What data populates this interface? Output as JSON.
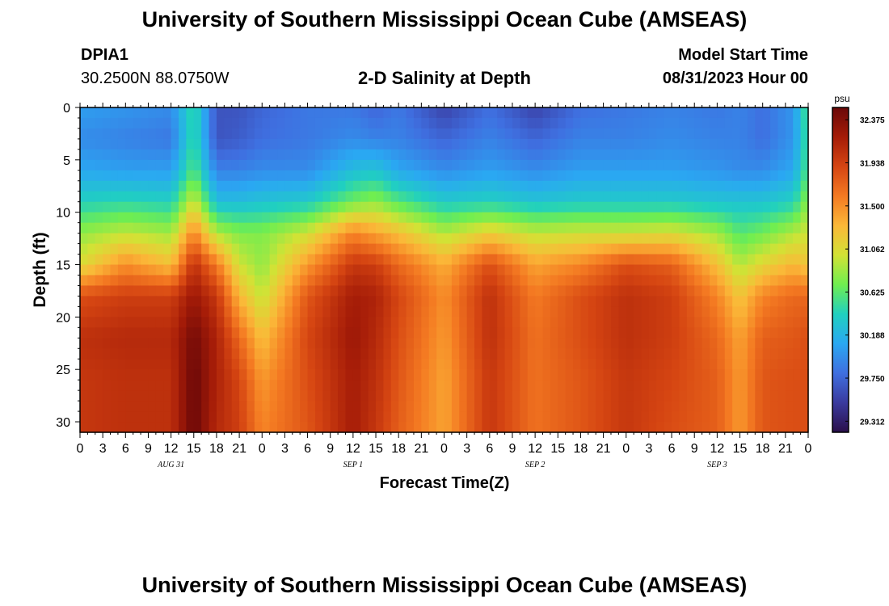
{
  "page": {
    "title": "University of Southern Mississippi Ocean Cube (AMSEAS)",
    "footer_title": "University of Southern Mississippi Ocean Cube (AMSEAS)",
    "station_id": "DPIA1",
    "station_coords": "30.2500N  88.0750W",
    "subtitle": "2-D Salinity at Depth",
    "model_start_label": "Model Start Time",
    "model_start_value": "08/31/2023 Hour 00"
  },
  "chart_data": {
    "type": "heatmap",
    "title": "2-D Salinity at Depth",
    "xlabel": "Forecast Time(Z)",
    "ylabel": "Depth (ft)",
    "y_ticks": [
      "0",
      "5",
      "10",
      "15",
      "20",
      "25",
      "30"
    ],
    "ylim": [
      0,
      31
    ],
    "xlim_hours": [
      0,
      96
    ],
    "x_ticks": [
      "0",
      "3",
      "6",
      "9",
      "12",
      "15",
      "18",
      "21",
      "0",
      "3",
      "6",
      "9",
      "12",
      "15",
      "18",
      "21",
      "0",
      "3",
      "6",
      "9",
      "12",
      "15",
      "18",
      "21",
      "0",
      "3",
      "6",
      "9",
      "12",
      "15",
      "18",
      "21",
      "0"
    ],
    "date_labels": [
      {
        "text": "AUG 31",
        "hour": 12
      },
      {
        "text": "SEP 1",
        "hour": 36
      },
      {
        "text": "SEP 2",
        "hour": 60
      },
      {
        "text": "SEP 3",
        "hour": 84
      }
    ],
    "colorbar": {
      "unit": "psu",
      "ticks": [
        "32.375",
        "31.938",
        "31.500",
        "31.062",
        "30.625",
        "30.188",
        "29.750",
        "29.312"
      ],
      "vmin": 29.2,
      "vmax": 32.5,
      "colors": [
        "#2a0f4a",
        "#3a3a9e",
        "#3f6fe0",
        "#2aa8f2",
        "#20d0c0",
        "#70ee50",
        "#d2e235",
        "#fbb838",
        "#f47a22",
        "#d54512",
        "#a51c08",
        "#6a0808"
      ]
    },
    "depth_profiles": {
      "description": "Salinity (psu) vs forecast hour at fixed depths (ft)",
      "depths_ft": [
        0,
        3,
        6,
        9,
        12,
        15,
        18,
        22,
        26,
        31
      ],
      "hours": [
        0,
        6,
        12,
        15,
        18,
        21,
        24,
        30,
        36,
        39,
        42,
        48,
        54,
        60,
        66,
        72,
        78,
        84,
        87,
        90,
        94,
        96
      ],
      "rows": [
        [
          30.05,
          30.0,
          29.95,
          30.5,
          29.65,
          29.65,
          29.75,
          29.85,
          29.85,
          29.75,
          29.85,
          29.55,
          29.8,
          29.55,
          29.8,
          29.85,
          29.9,
          29.85,
          29.9,
          29.8,
          30.0,
          30.6
        ],
        [
          29.95,
          29.9,
          29.85,
          30.5,
          29.65,
          29.7,
          29.8,
          29.85,
          29.95,
          29.9,
          29.9,
          29.75,
          29.9,
          29.75,
          29.9,
          29.9,
          29.95,
          29.9,
          29.9,
          29.8,
          30.0,
          30.55
        ],
        [
          30.1,
          30.05,
          30.05,
          30.6,
          29.9,
          29.9,
          29.95,
          29.95,
          30.25,
          30.3,
          30.1,
          29.95,
          30.05,
          29.95,
          30.05,
          30.05,
          30.05,
          30.0,
          29.95,
          29.95,
          30.1,
          30.6
        ],
        [
          30.4,
          30.45,
          30.4,
          31.0,
          30.25,
          30.25,
          30.3,
          30.35,
          30.7,
          30.8,
          30.6,
          30.35,
          30.4,
          30.3,
          30.35,
          30.35,
          30.35,
          30.3,
          30.3,
          30.3,
          30.4,
          30.8
        ],
        [
          30.8,
          30.95,
          30.85,
          31.55,
          30.9,
          30.75,
          30.75,
          31.0,
          31.55,
          31.4,
          31.25,
          30.9,
          31.15,
          30.95,
          31.0,
          31.0,
          31.05,
          30.85,
          30.6,
          30.7,
          30.9,
          31.0
        ],
        [
          31.05,
          31.5,
          31.25,
          32.05,
          31.6,
          31.0,
          30.8,
          31.45,
          32.0,
          31.95,
          31.7,
          31.35,
          31.85,
          31.4,
          31.55,
          31.85,
          31.75,
          31.25,
          30.9,
          31.1,
          31.3,
          31.2
        ],
        [
          31.85,
          31.95,
          31.95,
          32.25,
          32.0,
          31.3,
          30.95,
          31.8,
          32.2,
          32.15,
          31.9,
          31.5,
          32.05,
          31.6,
          31.85,
          32.05,
          31.95,
          31.55,
          31.2,
          31.55,
          31.7,
          31.7
        ],
        [
          32.05,
          32.1,
          32.1,
          32.45,
          32.15,
          31.7,
          31.25,
          31.9,
          32.25,
          32.1,
          31.85,
          31.45,
          32.05,
          31.65,
          31.85,
          32.05,
          31.95,
          31.7,
          31.4,
          31.75,
          31.8,
          31.85
        ],
        [
          32.0,
          32.05,
          32.05,
          32.5,
          32.15,
          31.9,
          31.45,
          31.85,
          32.2,
          32.05,
          31.8,
          31.4,
          32.0,
          31.65,
          31.8,
          32.0,
          31.9,
          31.75,
          31.45,
          31.8,
          31.85,
          31.85
        ],
        [
          32.0,
          32.05,
          32.05,
          32.5,
          32.1,
          31.95,
          31.55,
          31.8,
          32.2,
          32.0,
          31.75,
          31.4,
          32.0,
          31.65,
          31.8,
          32.0,
          31.85,
          31.75,
          31.45,
          31.8,
          31.85,
          31.85
        ]
      ]
    }
  }
}
